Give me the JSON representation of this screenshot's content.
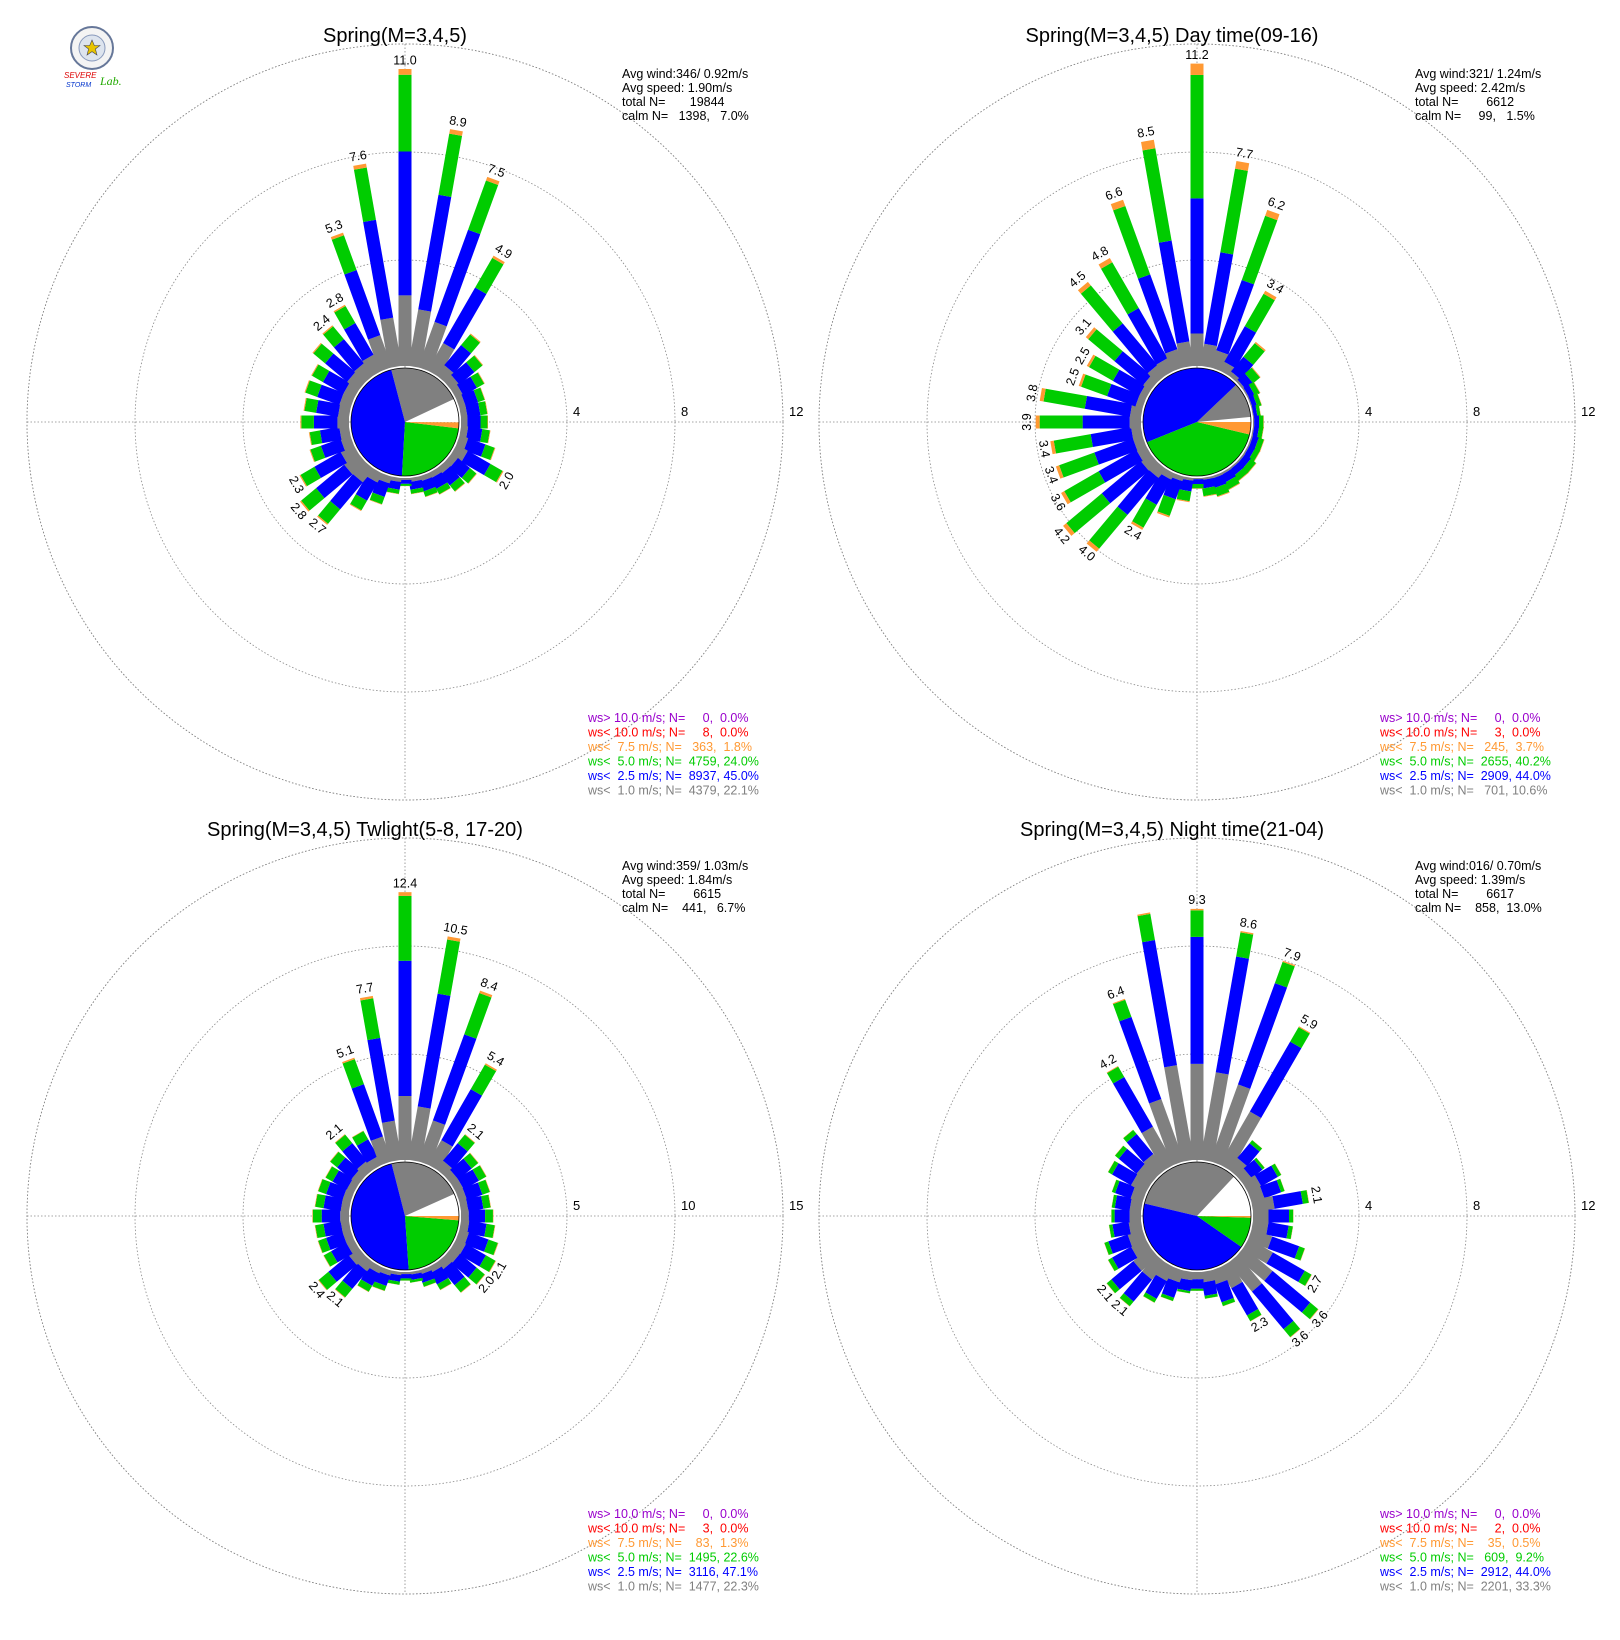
{
  "logo": {
    "line1": "SEVERE",
    "line2": "STORM",
    "line3": "Lab."
  },
  "colors": {
    "ws_gt10": "#9900cc",
    "ws_lt10": "#ff0000",
    "ws_lt7_5": "#ff9933",
    "ws_lt5": "#00cc00",
    "ws_lt2_5": "#0000ff",
    "ws_lt1": "#808080",
    "calm": "#ffffff",
    "grid": "#888888"
  },
  "chart_data": [
    {
      "type": "windrose",
      "title": "Spring(M=3,4,5)",
      "ring_labels": [
        "4",
        "8",
        "12"
      ],
      "rmax": 12,
      "stats": {
        "avg_wind": "Avg wind:346/ 0.92m/s",
        "avg_speed": "Avg speed: 1.90m/s",
        "total": "total N=       19844",
        "calm": "calm N=   1398,   7.0%"
      },
      "legend": [
        {
          "text": "ws> 10.0 m/s; N=     0,  0.0%",
          "color": "#9900cc"
        },
        {
          "text": "ws< 10.0 m/s; N=     8,  0.0%",
          "color": "#ff0000"
        },
        {
          "text": "ws<  7.5 m/s; N=   363,  1.8%",
          "color": "#ff9933"
        },
        {
          "text": "ws<  5.0 m/s; N=  4759, 24.0%",
          "color": "#00cc00"
        },
        {
          "text": "ws<  2.5 m/s; N=  8937, 45.0%",
          "color": "#0000ff"
        },
        {
          "text": "ws<  1.0 m/s; N=  4379, 22.1%",
          "color": "#808080"
        }
      ],
      "pie_fractions": [
        0.07,
        0.221,
        0.45,
        0.24,
        0.018,
        0.0
      ],
      "bars": [
        {
          "dir": 0,
          "total": 11.0,
          "label": "11.0"
        },
        {
          "dir": 10,
          "total": 8.9,
          "label": "8.9"
        },
        {
          "dir": 20,
          "total": 7.5,
          "label": "7.5"
        },
        {
          "dir": 30,
          "total": 4.9,
          "label": "4.9"
        },
        {
          "dir": 40,
          "total": 2.0
        },
        {
          "dir": 50,
          "total": 1.5
        },
        {
          "dir": 60,
          "total": 1.2
        },
        {
          "dir": 70,
          "total": 1.0
        },
        {
          "dir": 80,
          "total": 1.0
        },
        {
          "dir": 90,
          "total": 1.0
        },
        {
          "dir": 100,
          "total": 1.1
        },
        {
          "dir": 110,
          "total": 1.4
        },
        {
          "dir": 120,
          "total": 2.0,
          "label": "2.0"
        },
        {
          "dir": 130,
          "total": 1.2
        },
        {
          "dir": 140,
          "total": 1.1
        },
        {
          "dir": 150,
          "total": 0.9
        },
        {
          "dir": 160,
          "total": 0.8
        },
        {
          "dir": 170,
          "total": 0.6
        },
        {
          "dir": 180,
          "total": 0.3
        },
        {
          "dir": 190,
          "total": 0.6
        },
        {
          "dir": 200,
          "total": 1.1
        },
        {
          "dir": 210,
          "total": 1.6
        },
        {
          "dir": 220,
          "total": 2.7,
          "label": "2.7"
        },
        {
          "dir": 230,
          "total": 2.8,
          "label": "2.8"
        },
        {
          "dir": 240,
          "total": 2.3,
          "label": "2.3"
        },
        {
          "dir": 250,
          "total": 1.6
        },
        {
          "dir": 260,
          "total": 1.5
        },
        {
          "dir": 270,
          "total": 1.8
        },
        {
          "dir": 280,
          "total": 1.7
        },
        {
          "dir": 290,
          "total": 1.8
        },
        {
          "dir": 300,
          "total": 1.8
        },
        {
          "dir": 310,
          "total": 2.2
        },
        {
          "dir": 320,
          "total": 2.4,
          "label": "2.4"
        },
        {
          "dir": 330,
          "total": 2.8,
          "label": "2.8"
        },
        {
          "dir": 340,
          "total": 5.3,
          "label": "5.3"
        },
        {
          "dir": 350,
          "total": 7.6,
          "label": "7.6"
        }
      ]
    },
    {
      "type": "windrose",
      "title": "Spring(M=3,4,5) Day time(09-16)",
      "ring_labels": [
        "4",
        "8",
        "12"
      ],
      "rmax": 12,
      "stats": {
        "avg_wind": "Avg wind:321/ 1.24m/s",
        "avg_speed": "Avg speed: 2.42m/s",
        "total": "total N=        6612",
        "calm": "calm N=     99,   1.5%"
      },
      "legend": [
        {
          "text": "ws> 10.0 m/s; N=     0,  0.0%",
          "color": "#9900cc"
        },
        {
          "text": "ws< 10.0 m/s; N=     3,  0.0%",
          "color": "#ff0000"
        },
        {
          "text": "ws<  7.5 m/s; N=   245,  3.7%",
          "color": "#ff9933"
        },
        {
          "text": "ws<  5.0 m/s; N=  2655, 40.2%",
          "color": "#00cc00"
        },
        {
          "text": "ws<  2.5 m/s; N=  2909, 44.0%",
          "color": "#0000ff"
        },
        {
          "text": "ws<  1.0 m/s; N=   701, 10.6%",
          "color": "#808080"
        }
      ],
      "pie_fractions": [
        0.015,
        0.106,
        0.44,
        0.402,
        0.037,
        0.0
      ],
      "bars": [
        {
          "dir": 0,
          "total": 11.2,
          "label": "11.2"
        },
        {
          "dir": 10,
          "total": 7.7,
          "label": "7.7"
        },
        {
          "dir": 20,
          "total": 6.2,
          "label": "6.2"
        },
        {
          "dir": 30,
          "total": 3.4,
          "label": "3.4"
        },
        {
          "dir": 40,
          "total": 1.6
        },
        {
          "dir": 50,
          "total": 0.8
        },
        {
          "dir": 60,
          "total": 0.5
        },
        {
          "dir": 70,
          "total": 0.4
        },
        {
          "dir": 80,
          "total": 0.3
        },
        {
          "dir": 90,
          "total": 0.4
        },
        {
          "dir": 100,
          "total": 0.4
        },
        {
          "dir": 110,
          "total": 0.5
        },
        {
          "dir": 120,
          "total": 0.5
        },
        {
          "dir": 130,
          "total": 0.6
        },
        {
          "dir": 140,
          "total": 0.6
        },
        {
          "dir": 150,
          "total": 0.7
        },
        {
          "dir": 160,
          "total": 0.8
        },
        {
          "dir": 170,
          "total": 0.7
        },
        {
          "dir": 180,
          "total": 0.4
        },
        {
          "dir": 190,
          "total": 0.9
        },
        {
          "dir": 200,
          "total": 1.6
        },
        {
          "dir": 210,
          "total": 2.4,
          "label": "2.4"
        },
        {
          "dir": 220,
          "total": 4.0,
          "label": "4.0"
        },
        {
          "dir": 230,
          "total": 4.2,
          "label": "4.2"
        },
        {
          "dir": 240,
          "total": 3.6,
          "label": "3.6"
        },
        {
          "dir": 250,
          "total": 3.4,
          "label": "3.4"
        },
        {
          "dir": 260,
          "total": 3.4,
          "label": "3.4"
        },
        {
          "dir": 270,
          "total": 3.9,
          "label": "3.9"
        },
        {
          "dir": 280,
          "total": 3.8,
          "label": "3.8"
        },
        {
          "dir": 290,
          "total": 2.5,
          "label": "2.5"
        },
        {
          "dir": 300,
          "total": 2.5,
          "label": "2.5"
        },
        {
          "dir": 310,
          "total": 3.1,
          "label": "3.1"
        },
        {
          "dir": 320,
          "total": 4.5,
          "label": "4.5"
        },
        {
          "dir": 330,
          "total": 4.8,
          "label": "4.8"
        },
        {
          "dir": 340,
          "total": 6.6,
          "label": "6.6"
        },
        {
          "dir": 350,
          "total": 8.5,
          "label": "8.5"
        }
      ]
    },
    {
      "type": "windrose",
      "title": "Spring(M=3,4,5) Twlight(5-8, 17-20)",
      "ring_labels": [
        "5",
        "10",
        "15"
      ],
      "rmax": 15,
      "stats": {
        "avg_wind": "Avg wind:359/ 1.03m/s",
        "avg_speed": "Avg speed: 1.84m/s",
        "total": "total N=        6615",
        "calm": "calm N=    441,   6.7%"
      },
      "legend": [
        {
          "text": "ws> 10.0 m/s; N=     0,  0.0%",
          "color": "#9900cc"
        },
        {
          "text": "ws< 10.0 m/s; N=     3,  0.0%",
          "color": "#ff0000"
        },
        {
          "text": "ws<  7.5 m/s; N=    83,  1.3%",
          "color": "#ff9933"
        },
        {
          "text": "ws<  5.0 m/s; N=  1495, 22.6%",
          "color": "#00cc00"
        },
        {
          "text": "ws<  2.5 m/s; N=  3116, 47.1%",
          "color": "#0000ff"
        },
        {
          "text": "ws<  1.0 m/s; N=  1477, 22.3%",
          "color": "#808080"
        }
      ],
      "pie_fractions": [
        0.067,
        0.223,
        0.471,
        0.226,
        0.013,
        0.0
      ],
      "bars": [
        {
          "dir": 0,
          "total": 12.4,
          "label": "12.4"
        },
        {
          "dir": 10,
          "total": 10.5,
          "label": "10.5"
        },
        {
          "dir": 20,
          "total": 8.4,
          "label": "8.4"
        },
        {
          "dir": 30,
          "total": 5.4,
          "label": "5.4"
        },
        {
          "dir": 40,
          "total": 2.1,
          "label": "2.1"
        },
        {
          "dir": 50,
          "total": 1.6
        },
        {
          "dir": 60,
          "total": 1.6
        },
        {
          "dir": 70,
          "total": 1.5
        },
        {
          "dir": 80,
          "total": 1.4
        },
        {
          "dir": 90,
          "total": 1.5
        },
        {
          "dir": 100,
          "total": 1.6
        },
        {
          "dir": 110,
          "total": 1.9
        },
        {
          "dir": 120,
          "total": 2.1,
          "label": "2.1"
        },
        {
          "dir": 130,
          "total": 2.0,
          "label": "2.0"
        },
        {
          "dir": 140,
          "total": 1.8
        },
        {
          "dir": 150,
          "total": 1.2
        },
        {
          "dir": 160,
          "total": 0.8
        },
        {
          "dir": 170,
          "total": 0.5
        },
        {
          "dir": 180,
          "total": 0.4
        },
        {
          "dir": 190,
          "total": 0.6
        },
        {
          "dir": 200,
          "total": 1.0
        },
        {
          "dir": 210,
          "total": 1.3
        },
        {
          "dir": 220,
          "total": 2.1,
          "label": "2.1"
        },
        {
          "dir": 230,
          "total": 2.4,
          "label": "2.4"
        },
        {
          "dir": 240,
          "total": 1.6
        },
        {
          "dir": 250,
          "total": 1.6
        },
        {
          "dir": 260,
          "total": 1.6
        },
        {
          "dir": 270,
          "total": 1.7
        },
        {
          "dir": 280,
          "total": 1.6
        },
        {
          "dir": 290,
          "total": 1.6
        },
        {
          "dir": 300,
          "total": 1.5
        },
        {
          "dir": 310,
          "total": 1.7
        },
        {
          "dir": 320,
          "total": 2.1,
          "label": "2.1"
        },
        {
          "dir": 330,
          "total": 1.8
        },
        {
          "dir": 340,
          "total": 5.1,
          "label": "5.1"
        },
        {
          "dir": 350,
          "total": 7.7,
          "label": "7.7"
        }
      ]
    },
    {
      "type": "windrose",
      "title": "Spring(M=3,4,5) Night time(21-04)",
      "ring_labels": [
        "4",
        "8",
        "12"
      ],
      "rmax": 12,
      "stats": {
        "avg_wind": "Avg wind:016/ 0.70m/s",
        "avg_speed": "Avg speed: 1.39m/s",
        "total": "total N=        6617",
        "calm": "calm N=    858,  13.0%"
      },
      "legend": [
        {
          "text": "ws> 10.0 m/s; N=     0,  0.0%",
          "color": "#9900cc"
        },
        {
          "text": "ws< 10.0 m/s; N=     2,  0.0%",
          "color": "#ff0000"
        },
        {
          "text": "ws<  7.5 m/s; N=    35,  0.5%",
          "color": "#ff9933"
        },
        {
          "text": "ws<  5.0 m/s; N=   609,  9.2%",
          "color": "#00cc00"
        },
        {
          "text": "ws<  2.5 m/s; N=  2912, 44.0%",
          "color": "#0000ff"
        },
        {
          "text": "ws<  1.0 m/s; N=  2201, 33.3%",
          "color": "#808080"
        }
      ],
      "pie_fractions": [
        0.13,
        0.333,
        0.44,
        0.092,
        0.005,
        0.0
      ],
      "bars": [
        {
          "dir": 0,
          "total": 9.3,
          "label": "9.3"
        },
        {
          "dir": 10,
          "total": 8.6,
          "label": "8.6"
        },
        {
          "dir": 20,
          "total": 7.9,
          "label": "7.9"
        },
        {
          "dir": 30,
          "total": 5.9,
          "label": "5.9"
        },
        {
          "dir": 40,
          "total": 1.4
        },
        {
          "dir": 50,
          "total": 1.0
        },
        {
          "dir": 60,
          "total": 1.4
        },
        {
          "dir": 70,
          "total": 1.3
        },
        {
          "dir": 80,
          "total": 2.1,
          "label": "2.1"
        },
        {
          "dir": 90,
          "total": 1.5
        },
        {
          "dir": 100,
          "total": 1.5
        },
        {
          "dir": 110,
          "total": 2.1
        },
        {
          "dir": 120,
          "total": 2.7,
          "label": "2.7"
        },
        {
          "dir": 130,
          "total": 3.6,
          "label": "3.6"
        },
        {
          "dir": 140,
          "total": 3.6,
          "label": "3.6"
        },
        {
          "dir": 150,
          "total": 2.3,
          "label": "2.3"
        },
        {
          "dir": 160,
          "total": 1.4
        },
        {
          "dir": 170,
          "total": 1.0
        },
        {
          "dir": 180,
          "total": 0.7
        },
        {
          "dir": 190,
          "total": 0.8
        },
        {
          "dir": 200,
          "total": 1.2
        },
        {
          "dir": 210,
          "total": 1.5
        },
        {
          "dir": 220,
          "total": 2.1,
          "label": "2.1"
        },
        {
          "dir": 230,
          "total": 2.1,
          "label": "2.1"
        },
        {
          "dir": 240,
          "total": 1.6
        },
        {
          "dir": 250,
          "total": 1.5
        },
        {
          "dir": 260,
          "total": 1.2
        },
        {
          "dir": 270,
          "total": 1.1
        },
        {
          "dir": 280,
          "total": 1.1
        },
        {
          "dir": 290,
          "total": 1.2
        },
        {
          "dir": 300,
          "total": 1.6
        },
        {
          "dir": 310,
          "total": 1.7
        },
        {
          "dir": 320,
          "total": 1.9
        },
        {
          "dir": 330,
          "total": 4.2,
          "label": "4.2"
        },
        {
          "dir": 340,
          "total": 6.4,
          "label": "6.4"
        },
        {
          "dir": 350,
          "total": 9.3
        }
      ]
    }
  ]
}
